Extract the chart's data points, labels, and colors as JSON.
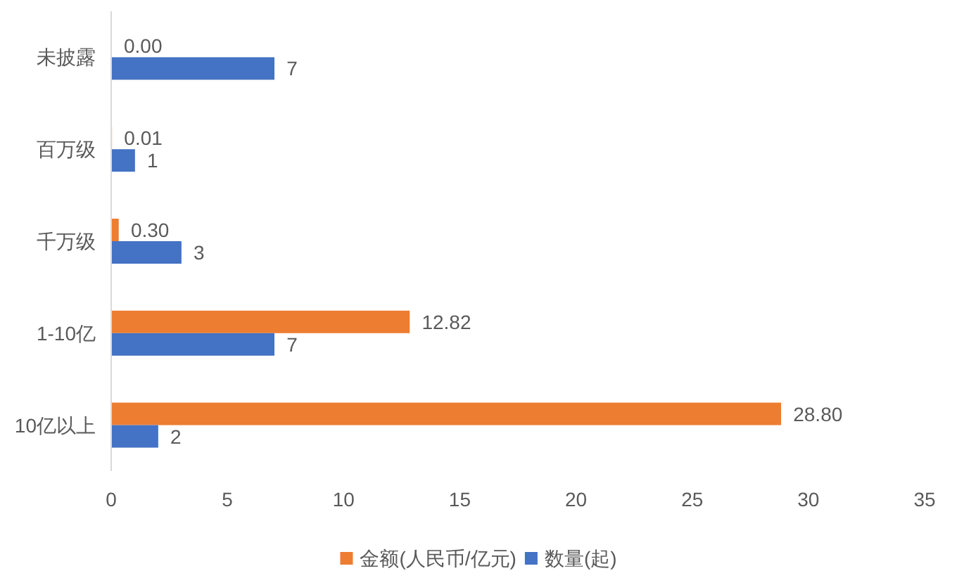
{
  "chart_data": {
    "type": "bar",
    "orientation": "horizontal",
    "categories": [
      "未披露",
      "百万级",
      "千万级",
      "1-10亿",
      "10亿以上"
    ],
    "series": [
      {
        "name": "金额(人民币/亿元)",
        "color": "#ed7d31",
        "values": [
          0.0,
          0.01,
          0.3,
          12.82,
          28.8
        ],
        "value_labels": [
          "0.00",
          "0.01",
          "0.30",
          "12.82",
          "28.80"
        ]
      },
      {
        "name": "数量(起)",
        "color": "#4472c4",
        "values": [
          7,
          1,
          3,
          7,
          2
        ],
        "value_labels": [
          "7",
          "1",
          "3",
          "7",
          "2"
        ]
      }
    ],
    "xlim": [
      0,
      35
    ],
    "xticks": [
      0,
      5,
      10,
      15,
      20,
      25,
      30,
      35
    ],
    "legend": "bottom"
  }
}
